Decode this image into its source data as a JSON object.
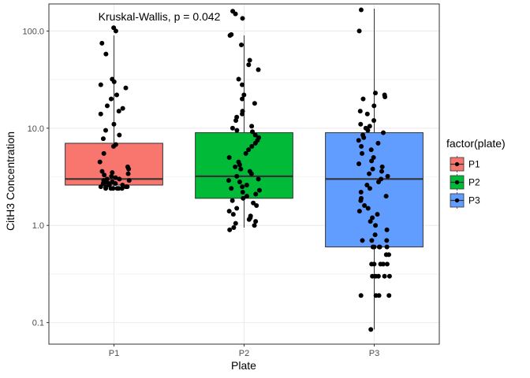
{
  "chart_data": {
    "type": "box",
    "title": "",
    "xlabel": "Plate",
    "ylabel": "CitH3 Concentration",
    "y_scale": "log10",
    "ylim": [
      0.06,
      190
    ],
    "y_ticks": [
      0.1,
      1.0,
      10.0,
      100.0
    ],
    "y_tick_labels": [
      "0.1",
      "1.0",
      "10.0",
      "100.0"
    ],
    "categories": [
      "P1",
      "P2",
      "P3"
    ],
    "grid": true,
    "annotation": "Kruskal-Wallis, p = 0.042",
    "legend": {
      "title": "factor(plate)",
      "position": "right",
      "entries": [
        "P1",
        "P2",
        "P3"
      ]
    },
    "series": [
      {
        "category": "P1",
        "color": "#F8766D",
        "box": {
          "min": 2.4,
          "q1": 2.6,
          "median": 3.0,
          "q3": 7.0,
          "max": 90
        },
        "points": [
          108,
          100,
          75,
          58,
          32,
          30,
          28,
          26,
          22,
          20,
          17,
          16,
          15,
          14,
          11,
          9.5,
          8.5,
          7.8,
          6.8,
          6.5,
          5.5,
          4.5,
          4.0,
          3.8,
          3.6,
          3.5,
          3.4,
          3.3,
          3.2,
          3.1,
          3.0,
          3.0,
          2.9,
          2.9,
          2.8,
          2.8,
          2.7,
          2.7,
          2.7,
          2.6,
          2.6,
          2.6,
          2.5,
          2.5,
          2.5,
          2.5,
          2.4,
          2.4,
          2.4,
          2.4,
          2.4,
          2.4
        ]
      },
      {
        "category": "P2",
        "color": "#00BA38",
        "box": {
          "min": 0.95,
          "q1": 1.9,
          "median": 3.2,
          "q3": 9.0,
          "max": 90
        },
        "points": [
          160,
          150,
          135,
          92,
          90,
          72,
          50,
          45,
          40,
          32,
          28,
          22,
          20,
          18,
          15,
          14,
          13,
          12,
          10.5,
          10,
          9.5,
          9.2,
          8.5,
          8.0,
          7.5,
          7.0,
          6.5,
          6.0,
          5.5,
          5.0,
          4.5,
          4.2,
          4.0,
          3.8,
          3.6,
          3.4,
          3.2,
          3.0,
          2.9,
          2.8,
          2.6,
          2.5,
          2.4,
          2.3,
          2.2,
          2.1,
          2.0,
          1.9,
          1.8,
          1.7,
          1.6,
          1.5,
          1.4,
          1.3,
          1.25,
          1.2,
          1.15,
          1.1,
          1.05,
          1.0,
          0.95,
          0.9
        ]
      },
      {
        "category": "P3",
        "color": "#619CFF",
        "box": {
          "min": 0.085,
          "q1": 0.6,
          "median": 3.0,
          "q3": 9.0,
          "max": 170
        },
        "points": [
          165,
          100,
          23,
          22,
          21,
          20,
          17,
          15,
          14,
          12,
          11,
          10.5,
          10,
          9.5,
          9.0,
          8.5,
          8.0,
          7.5,
          7.0,
          6.5,
          6.0,
          5.5,
          5.0,
          4.6,
          4.3,
          4.0,
          3.8,
          3.6,
          3.4,
          3.2,
          3.0,
          2.8,
          2.6,
          2.4,
          2.2,
          2.0,
          1.9,
          1.8,
          1.6,
          1.5,
          1.4,
          1.3,
          1.2,
          1.1,
          1.0,
          0.9,
          0.8,
          0.7,
          0.7,
          0.7,
          0.6,
          0.6,
          0.6,
          0.6,
          0.6,
          0.5,
          0.5,
          0.4,
          0.4,
          0.4,
          0.4,
          0.4,
          0.3,
          0.3,
          0.3,
          0.3,
          0.3,
          0.19,
          0.19,
          0.19,
          0.19,
          0.085
        ]
      }
    ]
  }
}
